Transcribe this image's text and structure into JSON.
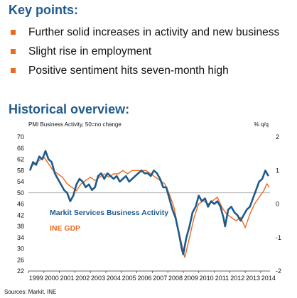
{
  "key_points": {
    "title": "Key points:",
    "items": [
      "Further solid increases in activity and new business",
      "Slight rise in employment",
      "Positive sentiment hits seven-month high"
    ]
  },
  "historical": {
    "title": "Historical overview:"
  },
  "colors": {
    "title": "#1f5a8c",
    "bullet": "#ea6a1f",
    "pmi": "#1f5a8c",
    "gdp": "#ea6a1f",
    "ref": "#999999"
  },
  "chart_data": {
    "type": "line",
    "left_axis_label": "PMI Business Activity, 50=no change",
    "right_axis_label": "% q/q",
    "source": "Sources: Markit, INE",
    "y_left": {
      "min": 22,
      "max": 70,
      "ticks": [
        "70",
        "66",
        "62",
        "58",
        "54",
        "50",
        "46",
        "42",
        "38",
        "34",
        "30",
        "26",
        "22"
      ]
    },
    "y_right": {
      "min": -2,
      "max": 2,
      "ticks": [
        "2",
        "1",
        "0",
        "-1",
        "-2"
      ]
    },
    "x_range": [
      1999.0,
      2014.6
    ],
    "x_ticks": [
      "1999",
      "2000",
      "2001",
      "2002",
      "2003",
      "2004",
      "2005",
      "2006",
      "2007",
      "2008",
      "2009",
      "2010",
      "2011",
      "2012",
      "2013",
      "2014"
    ],
    "reference_line": 50,
    "series": [
      {
        "name": "Markit Services Business Activity",
        "axis": "left",
        "points": [
          [
            1999.1,
            58
          ],
          [
            1999.3,
            61
          ],
          [
            1999.5,
            60
          ],
          [
            1999.7,
            63
          ],
          [
            1999.9,
            62
          ],
          [
            2000.1,
            65
          ],
          [
            2000.3,
            62
          ],
          [
            2000.5,
            61
          ],
          [
            2000.7,
            57
          ],
          [
            2000.9,
            55
          ],
          [
            2001.1,
            53
          ],
          [
            2001.3,
            51
          ],
          [
            2001.5,
            50
          ],
          [
            2001.7,
            47
          ],
          [
            2001.9,
            49
          ],
          [
            2002.1,
            53
          ],
          [
            2002.3,
            55
          ],
          [
            2002.5,
            54
          ],
          [
            2002.7,
            52
          ],
          [
            2002.9,
            53
          ],
          [
            2003.1,
            51
          ],
          [
            2003.3,
            52
          ],
          [
            2003.5,
            56
          ],
          [
            2003.7,
            57
          ],
          [
            2003.9,
            55
          ],
          [
            2004.1,
            57
          ],
          [
            2004.3,
            56
          ],
          [
            2004.5,
            55
          ],
          [
            2004.7,
            56
          ],
          [
            2004.9,
            54
          ],
          [
            2005.1,
            55
          ],
          [
            2005.3,
            56
          ],
          [
            2005.5,
            54
          ],
          [
            2005.7,
            55
          ],
          [
            2005.9,
            56
          ],
          [
            2006.1,
            57
          ],
          [
            2006.3,
            58
          ],
          [
            2006.5,
            57
          ],
          [
            2006.7,
            57
          ],
          [
            2006.9,
            56
          ],
          [
            2007.1,
            58
          ],
          [
            2007.3,
            57
          ],
          [
            2007.5,
            55
          ],
          [
            2007.7,
            52
          ],
          [
            2007.9,
            52
          ],
          [
            2008.1,
            48
          ],
          [
            2008.3,
            44
          ],
          [
            2008.5,
            41
          ],
          [
            2008.7,
            36
          ],
          [
            2008.9,
            30
          ],
          [
            2009.0,
            28
          ],
          [
            2009.2,
            34
          ],
          [
            2009.4,
            38
          ],
          [
            2009.6,
            43
          ],
          [
            2009.8,
            45
          ],
          [
            2010.0,
            49
          ],
          [
            2010.2,
            47
          ],
          [
            2010.4,
            48
          ],
          [
            2010.6,
            45
          ],
          [
            2010.8,
            47
          ],
          [
            2011.0,
            46
          ],
          [
            2011.2,
            47
          ],
          [
            2011.4,
            45
          ],
          [
            2011.6,
            41
          ],
          [
            2011.7,
            38
          ],
          [
            2011.9,
            44
          ],
          [
            2012.1,
            45
          ],
          [
            2012.3,
            43
          ],
          [
            2012.5,
            42
          ],
          [
            2012.7,
            40
          ],
          [
            2012.9,
            42
          ],
          [
            2013.1,
            44
          ],
          [
            2013.3,
            45
          ],
          [
            2013.5,
            48
          ],
          [
            2013.7,
            51
          ],
          [
            2013.9,
            54
          ],
          [
            2014.1,
            55
          ],
          [
            2014.3,
            58
          ],
          [
            2014.4,
            57
          ],
          [
            2014.5,
            56
          ]
        ]
      },
      {
        "name": "INE GDP",
        "axis": "right",
        "points": [
          [
            1999.1,
            1.1
          ],
          [
            1999.4,
            1.2
          ],
          [
            1999.7,
            1.3
          ],
          [
            2000.0,
            1.4
          ],
          [
            2000.3,
            1.2
          ],
          [
            2000.6,
            1.0
          ],
          [
            2000.9,
            0.9
          ],
          [
            2001.2,
            0.8
          ],
          [
            2001.5,
            0.6
          ],
          [
            2001.8,
            0.5
          ],
          [
            2002.1,
            0.4
          ],
          [
            2002.4,
            0.6
          ],
          [
            2002.7,
            0.7
          ],
          [
            2003.0,
            0.8
          ],
          [
            2003.3,
            0.7
          ],
          [
            2003.6,
            0.8
          ],
          [
            2003.9,
            0.9
          ],
          [
            2004.2,
            0.8
          ],
          [
            2004.5,
            0.9
          ],
          [
            2004.8,
            0.9
          ],
          [
            2005.1,
            1.0
          ],
          [
            2005.4,
            0.9
          ],
          [
            2005.7,
            1.0
          ],
          [
            2006.0,
            1.0
          ],
          [
            2006.3,
            1.0
          ],
          [
            2006.6,
            1.0
          ],
          [
            2006.9,
            0.9
          ],
          [
            2007.2,
            0.8
          ],
          [
            2007.5,
            0.7
          ],
          [
            2007.8,
            0.6
          ],
          [
            2008.1,
            0.3
          ],
          [
            2008.4,
            -0.1
          ],
          [
            2008.7,
            -0.8
          ],
          [
            2008.9,
            -1.2
          ],
          [
            2009.1,
            -1.6
          ],
          [
            2009.4,
            -1.0
          ],
          [
            2009.7,
            -0.4
          ],
          [
            2010.0,
            0.0
          ],
          [
            2010.3,
            0.1
          ],
          [
            2010.6,
            0.0
          ],
          [
            2010.9,
            0.1
          ],
          [
            2011.2,
            0.2
          ],
          [
            2011.5,
            -0.1
          ],
          [
            2011.8,
            -0.3
          ],
          [
            2012.1,
            -0.4
          ],
          [
            2012.4,
            -0.5
          ],
          [
            2012.7,
            -0.4
          ],
          [
            2013.0,
            -0.7
          ],
          [
            2013.3,
            -0.3
          ],
          [
            2013.6,
            0.0
          ],
          [
            2013.9,
            0.2
          ],
          [
            2014.2,
            0.4
          ],
          [
            2014.4,
            0.6
          ],
          [
            2014.55,
            0.5
          ]
        ]
      }
    ]
  }
}
